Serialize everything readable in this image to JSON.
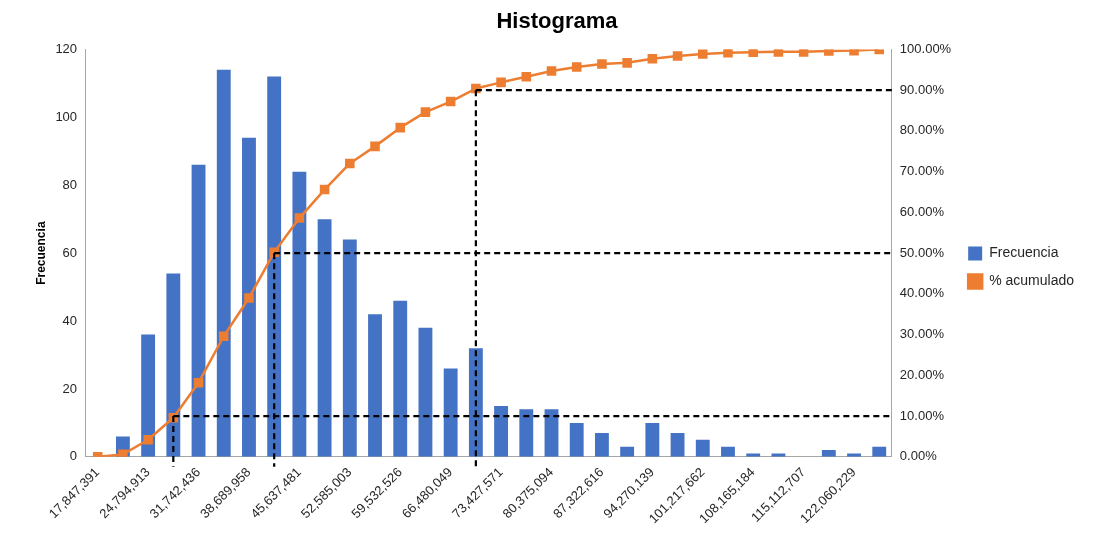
{
  "chart_data": {
    "type": "bar",
    "title": "Histograma",
    "ylabel": "Frecuencia",
    "x": [
      17847391,
      21321152,
      24794913,
      28268675,
      31742436,
      35216197,
      38689958,
      42163720,
      45637481,
      49111242,
      52585003,
      56058765,
      59532526,
      63006288,
      66480049,
      69953810,
      73427571,
      76901333,
      80375094,
      83848855,
      87322616,
      90796378,
      94270139,
      97743901,
      101217662,
      104691423,
      108165184,
      111638946,
      115112707,
      118586468,
      122060229,
      125533990
    ],
    "xlim": [
      16110510,
      127270871
    ],
    "xticks": [
      {
        "value": 17847391,
        "label": "17,847,391"
      },
      {
        "value": 24794913,
        "label": "24,794,913"
      },
      {
        "value": 31742436,
        "label": "31,742,436"
      },
      {
        "value": 38689958,
        "label": "38,689,958"
      },
      {
        "value": 45637481,
        "label": "45,637,481"
      },
      {
        "value": 52585003,
        "label": "52,585,003"
      },
      {
        "value": 59532526,
        "label": "59,532,526"
      },
      {
        "value": 66480049,
        "label": "66,480,049"
      },
      {
        "value": 73427571,
        "label": "73,427,571"
      },
      {
        "value": 80375094,
        "label": "80,375,094"
      },
      {
        "value": 87322616,
        "label": "87,322,616"
      },
      {
        "value": 94270139,
        "label": "94,270,139"
      },
      {
        "value": 101217662,
        "label": "101,217,662"
      },
      {
        "value": 108165184,
        "label": "108,165,184"
      },
      {
        "value": 115112707,
        "label": "115,112,707"
      },
      {
        "value": 122060229,
        "label": "122,060,229"
      }
    ],
    "ylim": [
      0,
      120
    ],
    "yticks": [
      0,
      20,
      40,
      60,
      80,
      100,
      120
    ],
    "y2lim": [
      0,
      100
    ],
    "y2ticks": [
      {
        "value": 0,
        "label": "0.00%"
      },
      {
        "value": 10,
        "label": "10.00%"
      },
      {
        "value": 20,
        "label": "20.00%"
      },
      {
        "value": 30,
        "label": "30.00%"
      },
      {
        "value": 40,
        "label": "40.00%"
      },
      {
        "value": 50,
        "label": "50.00%"
      },
      {
        "value": 60,
        "label": "60.00%"
      },
      {
        "value": 70,
        "label": "70.00%"
      },
      {
        "value": 80,
        "label": "80.00%"
      },
      {
        "value": 90,
        "label": "90.00%"
      },
      {
        "value": 100,
        "label": "100.00%"
      }
    ],
    "series": [
      {
        "name": "Frecuencia",
        "color": "#4472c4",
        "values": [
          0,
          6,
          36,
          54,
          86,
          114,
          94,
          112,
          84,
          70,
          64,
          42,
          46,
          38,
          26,
          32,
          15,
          14,
          14,
          10,
          7,
          3,
          10,
          7,
          5,
          3,
          1,
          1,
          0,
          2,
          1,
          3
        ]
      },
      {
        "name": "% acumulado",
        "type": "line",
        "axis": "y2",
        "color": "#ed7d31",
        "values": [
          0,
          0.6,
          4.2,
          9.6,
          18.2,
          29.6,
          39.0,
          50.2,
          58.6,
          65.6,
          72.0,
          76.2,
          80.8,
          84.6,
          87.2,
          90.4,
          91.9,
          93.3,
          94.7,
          95.7,
          96.4,
          96.7,
          97.7,
          98.4,
          98.9,
          99.2,
          99.3,
          99.4,
          99.4,
          99.6,
          99.7,
          100
        ]
      }
    ],
    "ref_lines": [
      {
        "axis": "y2",
        "value": 10,
        "color": "#000000",
        "line_style": "dashed"
      },
      {
        "axis": "y2",
        "value": 50,
        "color": "#000000",
        "line_style": "dashed"
      },
      {
        "axis": "y2",
        "value": 90,
        "color": "#000000",
        "line_style": "dashed"
      },
      {
        "axis": "x",
        "value": 28268675,
        "color": "#000000",
        "line_style": "dashed"
      },
      {
        "axis": "x",
        "value": 42163720,
        "color": "#000000",
        "line_style": "dashed"
      },
      {
        "axis": "x",
        "value": 69953810,
        "color": "#000000",
        "line_style": "dashed"
      }
    ],
    "marker": "square",
    "legend": "right"
  }
}
